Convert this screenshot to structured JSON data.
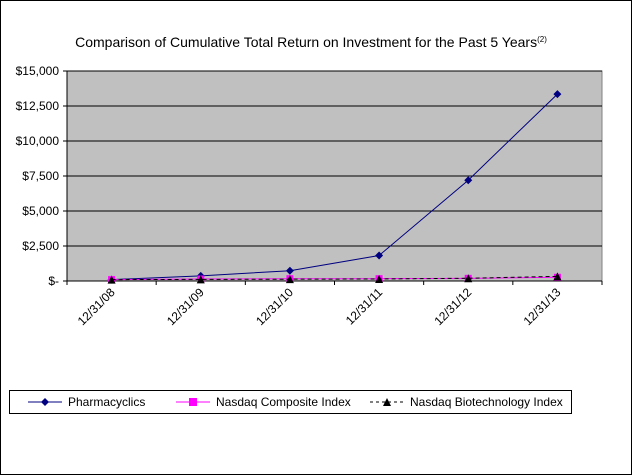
{
  "chart_data": {
    "type": "line",
    "title": "Comparison of Cumulative Total Return on Investment for the Past 5 Years",
    "title_superscript": "(2)",
    "categories": [
      "12/31/08",
      "12/31/09",
      "12/31/10",
      "12/31/11",
      "12/31/12",
      "12/31/13"
    ],
    "y_ticks": [
      "$-",
      "$2,500",
      "$5,000",
      "$7,500",
      "$10,000",
      "$12,500",
      "$15,000"
    ],
    "ylim": [
      0,
      15000
    ],
    "grid": true,
    "legend_position": "bottom",
    "plot_background": "#c0c0c0",
    "series": [
      {
        "name": "Pharmacyclics",
        "color": "#000080",
        "marker": "diamond",
        "dash": "solid",
        "values": [
          100,
          370,
          730,
          1820,
          7200,
          13350
        ]
      },
      {
        "name": "Nasdaq Composite Index",
        "color": "#ff00ff",
        "marker": "square",
        "dash": "solid",
        "values": [
          100,
          140,
          165,
          165,
          190,
          265
        ]
      },
      {
        "name": "Nasdaq Biotechnology Index",
        "color": "#000000",
        "marker": "triangle",
        "dash": "dashed",
        "values": [
          100,
          115,
          130,
          145,
          195,
          330
        ]
      }
    ]
  }
}
